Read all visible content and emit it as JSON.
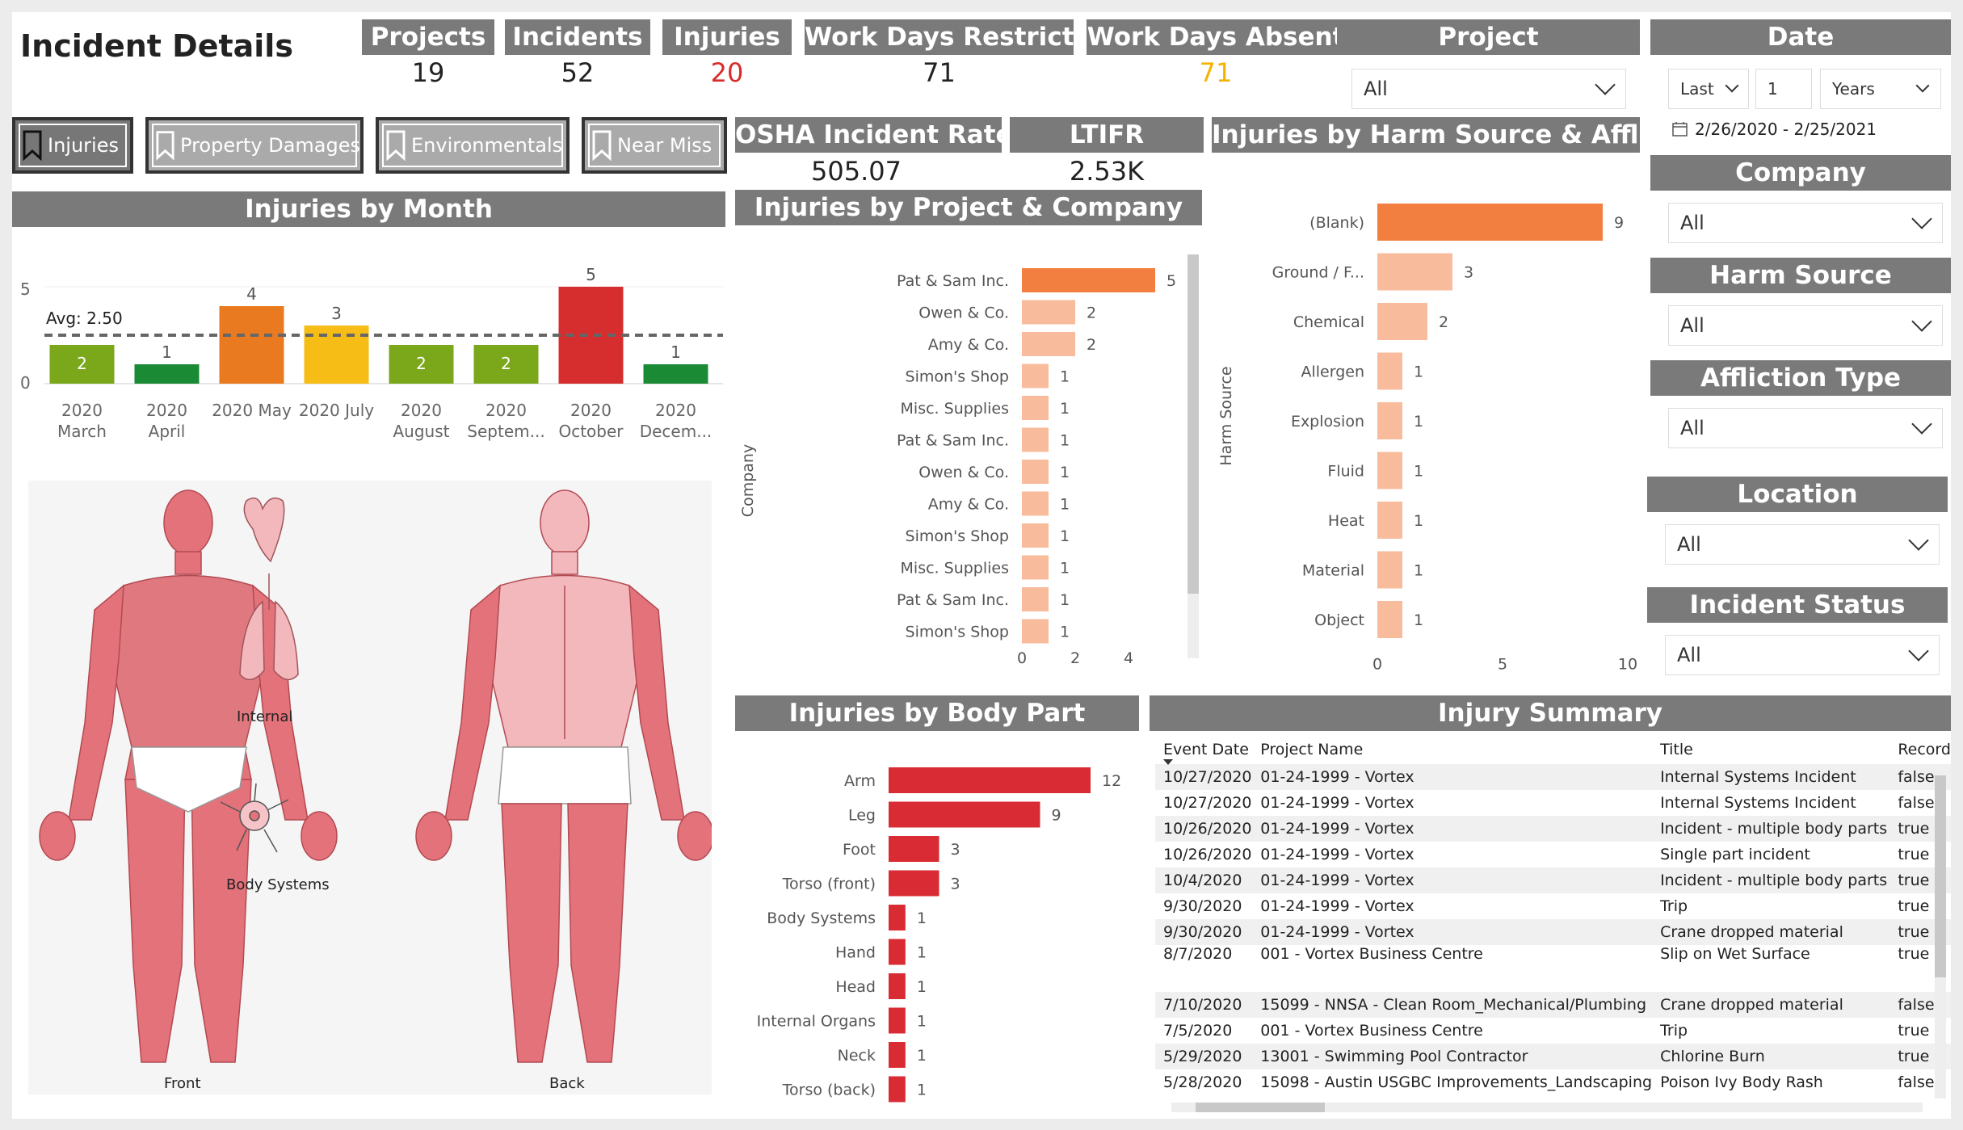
{
  "page_title": "Incident Details",
  "kpis": {
    "projects": {
      "label": "Projects",
      "value": "19"
    },
    "incidents": {
      "label": "Incidents",
      "value": "52"
    },
    "injuries": {
      "label": "Injuries",
      "value": "20"
    },
    "restricted": {
      "label": "Work Days Restricted",
      "value": "71"
    },
    "absent": {
      "label": "Work Days Absent",
      "value": "71"
    },
    "osha": {
      "label": "OSHA Incident Rate",
      "value": "505.07"
    },
    "ltifr": {
      "label": "LTIFR",
      "value": "2.53K"
    }
  },
  "tabs": [
    {
      "label": "Injuries",
      "active": true
    },
    {
      "label": "Property Damages",
      "active": false
    },
    {
      "label": "Environmentals",
      "active": false
    },
    {
      "label": "Near Miss",
      "active": false
    }
  ],
  "filters": {
    "project": {
      "label": "Project",
      "value": "All"
    },
    "date": {
      "label": "Date",
      "mode": "Last",
      "count": "1",
      "unit": "Years",
      "range": "2/26/2020 - 2/25/2021"
    },
    "company": {
      "label": "Company",
      "value": "All"
    },
    "harm_source": {
      "label": "Harm Source",
      "value": "All"
    },
    "affliction": {
      "label": "Affliction Type",
      "value": "All"
    },
    "location": {
      "label": "Location",
      "value": "All"
    },
    "status": {
      "label": "Incident Status",
      "value": "All"
    }
  },
  "month_chart": {
    "title": "Injuries by Month",
    "avg_label": "Avg: 2.50",
    "avg": 2.5,
    "ymax": 5,
    "ticks": [
      "5",
      "0"
    ],
    "bars": [
      {
        "l1": "2020",
        "l2": "March",
        "value": 2,
        "color": "#7ba71b"
      },
      {
        "l1": "2020",
        "l2": "April",
        "value": 1,
        "color": "#1a8a35"
      },
      {
        "l1": "2020 May",
        "l2": "",
        "value": 4,
        "color": "#ea7a1f"
      },
      {
        "l1": "2020 July",
        "l2": "",
        "value": 3,
        "color": "#f6bd16"
      },
      {
        "l1": "2020",
        "l2": "August",
        "value": 2,
        "color": "#7ba71b"
      },
      {
        "l1": "2020",
        "l2": "Septem...",
        "value": 2,
        "color": "#7ba71b"
      },
      {
        "l1": "2020",
        "l2": "October",
        "value": 5,
        "color": "#d62e2e"
      },
      {
        "l1": "2020",
        "l2": "Decem...",
        "value": 1,
        "color": "#1a8a35"
      }
    ]
  },
  "project_chart": {
    "title": "Injuries by Project & Company",
    "axis_label": "Company",
    "max": 5,
    "ticks": [
      "0",
      "2",
      "4"
    ],
    "bars": [
      {
        "label": "Pat & Sam Inc.",
        "value": 5
      },
      {
        "label": "Owen & Co.",
        "value": 2
      },
      {
        "label": "Amy & Co.",
        "value": 2
      },
      {
        "label": "Simon's Shop",
        "value": 1
      },
      {
        "label": "Misc. Supplies",
        "value": 1
      },
      {
        "label": "Pat & Sam Inc.",
        "value": 1
      },
      {
        "label": "Owen & Co.",
        "value": 1
      },
      {
        "label": "Amy & Co.",
        "value": 1
      },
      {
        "label": "Simon's Shop",
        "value": 1
      },
      {
        "label": "Misc. Supplies",
        "value": 1
      },
      {
        "label": "Pat & Sam Inc.",
        "value": 1
      },
      {
        "label": "Simon's Shop",
        "value": 1
      }
    ]
  },
  "harm_chart": {
    "title": "Injuries by Harm Source & Affliction",
    "axis_label": "Harm Source",
    "max": 10,
    "ticks": [
      "0",
      "5",
      "10"
    ],
    "bars": [
      {
        "label": "(Blank)",
        "value": 9
      },
      {
        "label": "Ground / F...",
        "value": 3
      },
      {
        "label": "Chemical",
        "value": 2
      },
      {
        "label": "Allergen",
        "value": 1
      },
      {
        "label": "Explosion",
        "value": 1
      },
      {
        "label": "Fluid",
        "value": 1
      },
      {
        "label": "Heat",
        "value": 1
      },
      {
        "label": "Material",
        "value": 1
      },
      {
        "label": "Object",
        "value": 1
      }
    ]
  },
  "body_chart": {
    "title": "Injuries by Body Part",
    "max": 12,
    "bars": [
      {
        "label": "Arm",
        "value": 12
      },
      {
        "label": "Leg",
        "value": 9
      },
      {
        "label": "Foot",
        "value": 3
      },
      {
        "label": "Torso (front)",
        "value": 3
      },
      {
        "label": "Body Systems",
        "value": 1
      },
      {
        "label": "Hand",
        "value": 1
      },
      {
        "label": "Head",
        "value": 1
      },
      {
        "label": "Internal Organs",
        "value": 1
      },
      {
        "label": "Neck",
        "value": 1
      },
      {
        "label": "Torso (back)",
        "value": 1
      }
    ]
  },
  "body_map": {
    "front": "Front",
    "back": "Back",
    "internal": "Internal",
    "systems": "Body Systems"
  },
  "summary": {
    "title": "Injury Summary",
    "columns": [
      "Event Date",
      "Project Name",
      "Title",
      "Record"
    ],
    "rows": [
      [
        "10/27/2020",
        "01-24-1999 - Vortex",
        "Internal Systems Incident",
        "false"
      ],
      [
        "10/27/2020",
        "01-24-1999 - Vortex",
        "Internal Systems Incident",
        "false"
      ],
      [
        "10/26/2020",
        "01-24-1999 - Vortex",
        "Incident - multiple body parts",
        "true"
      ],
      [
        "10/26/2020",
        "01-24-1999 - Vortex",
        "Single part incident",
        "true"
      ],
      [
        "10/4/2020",
        "01-24-1999 - Vortex",
        "Incident - multiple body parts",
        "true"
      ],
      [
        "9/30/2020",
        "01-24-1999 - Vortex",
        "Trip",
        "true"
      ],
      [
        "9/30/2020",
        "01-24-1999 - Vortex",
        "Crane dropped material",
        "true"
      ],
      [
        "8/7/2020",
        "001 - Vortex Business Centre",
        "Slip on Wet Surface",
        "true"
      ],
      [
        "7/10/2020",
        "15099 - NNSA - Clean Room_Mechanical/Plumbing",
        "Crane dropped material",
        "false"
      ],
      [
        "7/5/2020",
        "001 - Vortex Business Centre",
        "Trip",
        "true"
      ],
      [
        "5/29/2020",
        "13001 - Swimming Pool Contractor",
        "Chlorine Burn",
        "true"
      ],
      [
        "5/28/2020",
        "15098 - Austin USGBC Improvements_Landscaping",
        "Poison Ivy Body Rash",
        "false"
      ]
    ]
  }
}
